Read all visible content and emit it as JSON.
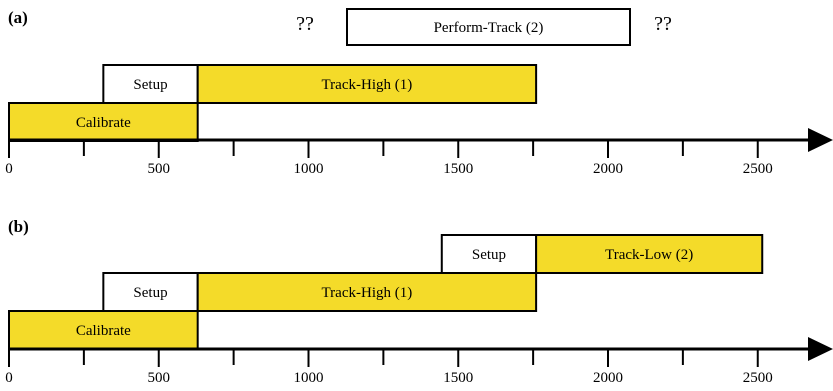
{
  "colors": {
    "task_fill": "#F4DB29",
    "setup_fill": "#FFFFFF",
    "line": "#000000"
  },
  "axis": {
    "min": 0,
    "max": 2700,
    "major_ticks": [
      0,
      500,
      1000,
      1500,
      2000,
      2500
    ],
    "tick_labels": [
      "0",
      "500",
      "1000",
      "1500",
      "2000",
      "2500"
    ],
    "minor_ticks": [
      250,
      750,
      1250,
      1750,
      2250
    ]
  },
  "panels": [
    {
      "label": "(a)",
      "tasks": [
        {
          "label": "Calibrate",
          "start": 0,
          "end": 630,
          "row": 0,
          "fill": "task"
        },
        {
          "label": "Setup",
          "start": 315,
          "end": 630,
          "row": 1,
          "fill": "setup"
        },
        {
          "label": "Track-High (1)",
          "start": 630,
          "end": 1760,
          "row": 1,
          "fill": "task"
        }
      ],
      "pending": {
        "label": "Perform-Track (2)",
        "before": "??",
        "after": "??"
      }
    },
    {
      "label": "(b)",
      "tasks": [
        {
          "label": "Calibrate",
          "start": 0,
          "end": 630,
          "row": 0,
          "fill": "task"
        },
        {
          "label": "Setup",
          "start": 315,
          "end": 630,
          "row": 1,
          "fill": "setup"
        },
        {
          "label": "Track-High (1)",
          "start": 630,
          "end": 1760,
          "row": 1,
          "fill": "task"
        },
        {
          "label": "Setup",
          "start": 1445,
          "end": 1760,
          "row": 2,
          "fill": "setup"
        },
        {
          "label": "Track-Low (2)",
          "start": 1760,
          "end": 2515,
          "row": 2,
          "fill": "task"
        }
      ]
    }
  ]
}
